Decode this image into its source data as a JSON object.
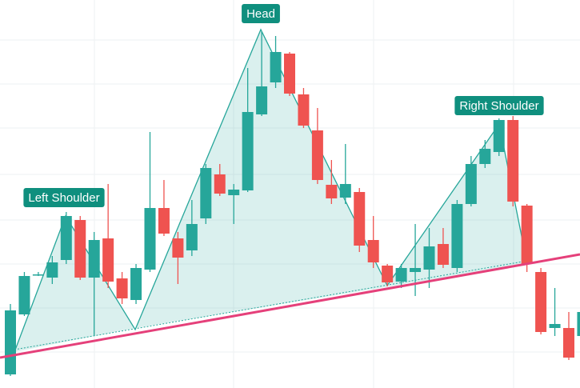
{
  "chart_data": {
    "type": "candlestick",
    "annotations": [
      "Left Shoulder",
      "Head",
      "Right Shoulder"
    ],
    "open": [
      17,
      92,
      142,
      138,
      160,
      210,
      138,
      187,
      137,
      110,
      148,
      225,
      187,
      172,
      212,
      267,
      241,
      247,
      342,
      382,
      418,
      367,
      322,
      254,
      238,
      245,
      185,
      153,
      133,
      145,
      148,
      180,
      150,
      230,
      280,
      295,
      335,
      228,
      145,
      75,
      75,
      65
    ],
    "high": [
      105,
      145,
      145,
      165,
      220,
      215,
      195,
      255,
      145,
      155,
      320,
      260,
      195,
      235,
      280,
      280,
      255,
      400,
      445,
      440,
      420,
      375,
      350,
      285,
      305,
      250,
      215,
      155,
      155,
      205,
      200,
      200,
      235,
      290,
      310,
      337,
      340,
      230,
      150,
      125,
      95,
      100
    ],
    "low": [
      15,
      90,
      140,
      130,
      155,
      135,
      65,
      125,
      105,
      105,
      145,
      190,
      130,
      165,
      205,
      240,
      205,
      245,
      340,
      375,
      365,
      325,
      255,
      230,
      230,
      170,
      150,
      127,
      125,
      115,
      125,
      150,
      145,
      227,
      275,
      290,
      227,
      145,
      67,
      65,
      35,
      60
    ],
    "close": [
      97,
      140,
      142,
      157,
      215,
      138,
      185,
      133,
      112,
      150,
      225,
      193,
      163,
      205,
      275,
      243,
      248,
      345,
      377,
      420,
      368,
      328,
      260,
      237,
      255,
      178,
      157,
      132,
      150,
      150,
      177,
      154,
      230,
      280,
      299,
      335,
      233,
      155,
      70,
      80,
      38,
      95
    ],
    "up_color": "#26a69a",
    "down_color": "#ef5350",
    "ylim": [
      0,
      485
    ]
  }
}
